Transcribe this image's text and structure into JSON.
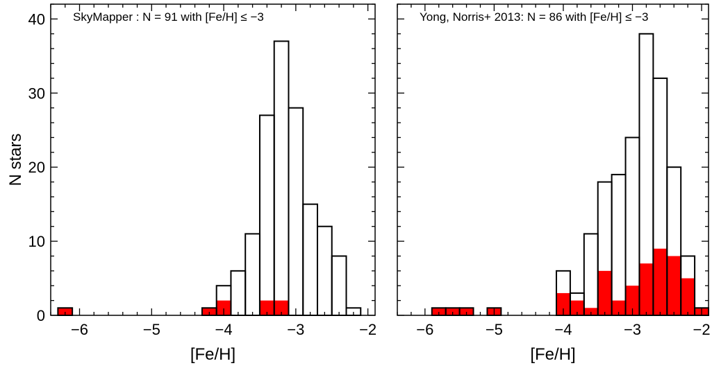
{
  "chart_data": [
    {
      "type": "bar",
      "title": "SkyMapper : N = 91 with [Fe/H] ≤ −3",
      "xlabel": "[Fe/H]",
      "ylabel": "N stars",
      "xlim": [
        -6.4,
        -1.9
      ],
      "ylim": [
        0,
        42
      ],
      "xticks": [
        -6,
        -5,
        -4,
        -3,
        -2
      ],
      "xtick_labels": [
        "−6",
        "−5",
        "−4",
        "−3",
        "−2"
      ],
      "yticks": [
        0,
        10,
        20,
        30,
        40
      ],
      "ytick_labels": [
        "0",
        "10",
        "20",
        "30",
        "40"
      ],
      "bin_width": 0.2,
      "series": [
        {
          "style": "outline",
          "color": "#000000",
          "bins": [
            {
              "x0": -6.3,
              "value": 1
            },
            {
              "x0": -4.3,
              "value": 1
            },
            {
              "x0": -4.1,
              "value": 4
            },
            {
              "x0": -3.9,
              "value": 6
            },
            {
              "x0": -3.7,
              "value": 11
            },
            {
              "x0": -3.5,
              "value": 27
            },
            {
              "x0": -3.3,
              "value": 37
            },
            {
              "x0": -3.1,
              "value": 28
            },
            {
              "x0": -2.9,
              "value": 15
            },
            {
              "x0": -2.7,
              "value": 12
            },
            {
              "x0": -2.5,
              "value": 8
            },
            {
              "x0": -2.3,
              "value": 1
            }
          ]
        },
        {
          "style": "filled",
          "color": "#ff0000",
          "bins": [
            {
              "x0": -6.3,
              "value": 1
            },
            {
              "x0": -4.3,
              "value": 1
            },
            {
              "x0": -4.1,
              "value": 2
            },
            {
              "x0": -3.5,
              "value": 2
            },
            {
              "x0": -3.3,
              "value": 2
            }
          ]
        }
      ]
    },
    {
      "type": "bar",
      "title": "Yong, Norris+ 2013: N = 86 with [Fe/H] ≤ −3",
      "xlabel": "[Fe/H]",
      "ylabel": "",
      "xlim": [
        -6.4,
        -1.9
      ],
      "ylim": [
        0,
        42
      ],
      "xticks": [
        -6,
        -5,
        -4,
        -3,
        -2
      ],
      "xtick_labels": [
        "−6",
        "−5",
        "−4",
        "−3",
        "−2"
      ],
      "yticks": [
        0,
        10,
        20,
        30,
        40
      ],
      "ytick_labels": [],
      "bin_width": 0.2,
      "series": [
        {
          "style": "outline",
          "color": "#000000",
          "bins": [
            {
              "x0": -5.9,
              "value": 1
            },
            {
              "x0": -5.7,
              "value": 1
            },
            {
              "x0": -5.5,
              "value": 1
            },
            {
              "x0": -5.1,
              "value": 1
            },
            {
              "x0": -4.1,
              "value": 6
            },
            {
              "x0": -3.9,
              "value": 3
            },
            {
              "x0": -3.7,
              "value": 11
            },
            {
              "x0": -3.5,
              "value": 18
            },
            {
              "x0": -3.3,
              "value": 19
            },
            {
              "x0": -3.1,
              "value": 24
            },
            {
              "x0": -2.9,
              "value": 38
            },
            {
              "x0": -2.7,
              "value": 32
            },
            {
              "x0": -2.5,
              "value": 20
            },
            {
              "x0": -2.3,
              "value": 8
            },
            {
              "x0": -2.1,
              "value": 1
            }
          ]
        },
        {
          "style": "filled",
          "color": "#ff0000",
          "bins": [
            {
              "x0": -5.9,
              "value": 1
            },
            {
              "x0": -5.7,
              "value": 1
            },
            {
              "x0": -5.5,
              "value": 1
            },
            {
              "x0": -5.1,
              "value": 1
            },
            {
              "x0": -4.1,
              "value": 3
            },
            {
              "x0": -3.9,
              "value": 2
            },
            {
              "x0": -3.7,
              "value": 1
            },
            {
              "x0": -3.5,
              "value": 6
            },
            {
              "x0": -3.3,
              "value": 2
            },
            {
              "x0": -3.1,
              "value": 4
            },
            {
              "x0": -2.9,
              "value": 7
            },
            {
              "x0": -2.7,
              "value": 9
            },
            {
              "x0": -2.5,
              "value": 8
            },
            {
              "x0": -2.3,
              "value": 5
            },
            {
              "x0": -2.1,
              "value": 1
            }
          ]
        }
      ]
    }
  ]
}
